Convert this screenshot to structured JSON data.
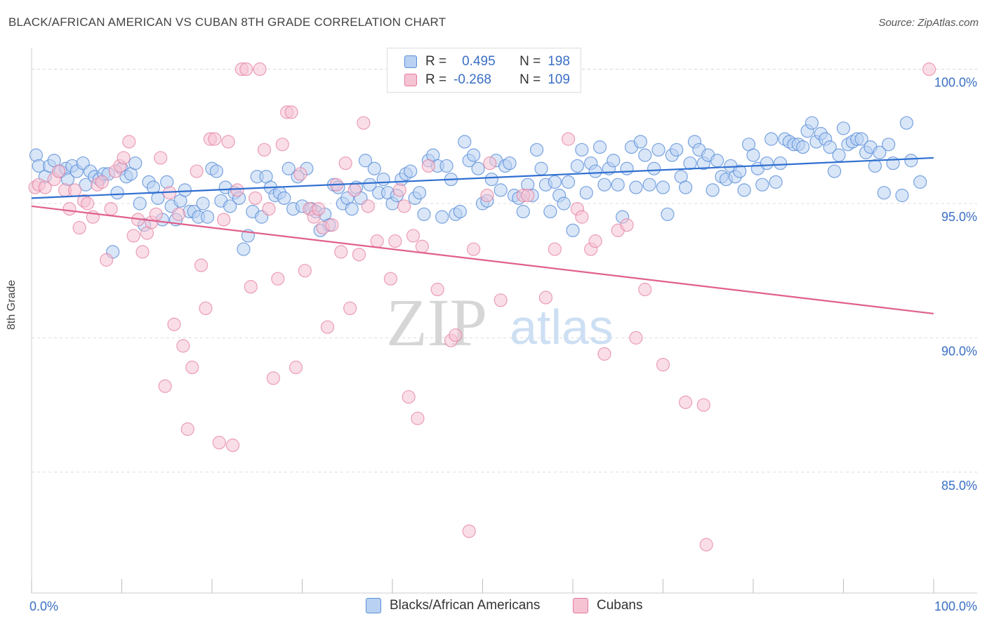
{
  "header": {
    "title": "BLACK/AFRICAN AMERICAN VS CUBAN 8TH GRADE CORRELATION CHART",
    "source": "Source: ZipAtlas.com"
  },
  "watermark": {
    "zip": "ZIP",
    "atlas": "atlas"
  },
  "legend": {
    "r_label": "R =",
    "n_label": "N =",
    "series": [
      {
        "r": "0.495",
        "n": "198"
      },
      {
        "r": "-0.268",
        "n": "109"
      }
    ]
  },
  "colors": {
    "blue": "#5a8fd8",
    "blue_fill": "#b9d1f2",
    "pink": "#e27a9d",
    "pink_fill": "#f6c3d3",
    "blue_line": "#2f6fd0",
    "pink_line": "#e0608c",
    "tick_text": "#3a6fc4"
  },
  "chart_data": {
    "type": "scatter",
    "title": "BLACK/AFRICAN AMERICAN VS CUBAN 8TH GRADE CORRELATION CHART",
    "xlabel": "",
    "ylabel": "8th Grade",
    "xlim": [
      0,
      100
    ],
    "ylim": [
      80.5,
      100.8
    ],
    "x_tick_labels": [
      "0.0%",
      "100.0%"
    ],
    "y_ticks": [
      85,
      90,
      95,
      100
    ],
    "y_tick_labels": [
      "85.0%",
      "90.0%",
      "95.0%",
      "100.0%"
    ],
    "grid": "horizontal dashed",
    "legend_position": "top-center and bottom",
    "series": [
      {
        "name": "Blacks/African Americans",
        "color": "#5a8fd8",
        "trend": {
          "x": [
            0,
            100
          ],
          "y": [
            95.2,
            96.7
          ]
        },
        "points": [
          [
            0.5,
            96.8
          ],
          [
            0.8,
            96.4
          ],
          [
            1.5,
            96
          ],
          [
            2,
            96.4
          ],
          [
            2.5,
            96.6
          ],
          [
            3.2,
            96.2
          ],
          [
            3.8,
            96.3
          ],
          [
            4,
            95.9
          ],
          [
            4.5,
            96.4
          ],
          [
            5,
            96.2
          ],
          [
            5.7,
            96.5
          ],
          [
            6,
            95.7
          ],
          [
            6.5,
            96.2
          ],
          [
            7,
            96
          ],
          [
            7.5,
            95.9
          ],
          [
            8,
            96.1
          ],
          [
            8.5,
            96.1
          ],
          [
            9,
            93.2
          ],
          [
            9.5,
            95.4
          ],
          [
            10,
            96.3
          ],
          [
            10.5,
            96
          ],
          [
            11,
            96.1
          ],
          [
            11.5,
            96.5
          ],
          [
            12,
            95
          ],
          [
            12.5,
            94.2
          ],
          [
            13,
            95.8
          ],
          [
            13.5,
            95.6
          ],
          [
            14,
            95.2
          ],
          [
            14.5,
            94.4
          ],
          [
            15,
            95.8
          ],
          [
            15.5,
            94.9
          ],
          [
            16,
            94.4
          ],
          [
            16.5,
            95.1
          ],
          [
            17,
            95.5
          ],
          [
            17.5,
            94.7
          ],
          [
            18,
            94.7
          ],
          [
            18.5,
            94.5
          ],
          [
            19,
            95
          ],
          [
            19.5,
            94.5
          ],
          [
            20,
            96.3
          ],
          [
            20.5,
            96.2
          ],
          [
            21,
            95.1
          ],
          [
            21.5,
            95.6
          ],
          [
            22,
            94.9
          ],
          [
            22.5,
            95.4
          ],
          [
            23,
            95.2
          ],
          [
            23.5,
            93.3
          ],
          [
            24,
            93.8
          ],
          [
            24.5,
            94.7
          ],
          [
            25,
            96
          ],
          [
            25.5,
            94.5
          ],
          [
            26,
            96
          ],
          [
            26.5,
            95.6
          ],
          [
            27,
            95.3
          ],
          [
            27.5,
            95.4
          ],
          [
            28,
            95.2
          ],
          [
            28.5,
            96.3
          ],
          [
            29,
            94.8
          ],
          [
            29.5,
            96
          ],
          [
            30,
            94.9
          ],
          [
            30.5,
            96.3
          ],
          [
            31,
            94.8
          ],
          [
            31.5,
            94.7
          ],
          [
            32,
            94
          ],
          [
            32.5,
            94.6
          ],
          [
            33,
            94.2
          ],
          [
            33.5,
            95.7
          ],
          [
            34,
            95.6
          ],
          [
            34.5,
            95
          ],
          [
            35,
            95.2
          ],
          [
            35.5,
            94.8
          ],
          [
            36,
            95.6
          ],
          [
            36.5,
            95.2
          ],
          [
            37,
            96.6
          ],
          [
            37.5,
            95.7
          ],
          [
            38,
            96.3
          ],
          [
            38.5,
            95.4
          ],
          [
            39,
            95.9
          ],
          [
            39.5,
            95.4
          ],
          [
            40,
            95
          ],
          [
            40.5,
            95.3
          ],
          [
            41,
            95.9
          ],
          [
            41.5,
            96.1
          ],
          [
            42,
            96.2
          ],
          [
            42.5,
            95.2
          ],
          [
            43,
            95.4
          ],
          [
            43.5,
            94.6
          ],
          [
            44,
            96.6
          ],
          [
            44.5,
            96.8
          ],
          [
            45,
            96.4
          ],
          [
            45.5,
            94.5
          ],
          [
            46,
            96.4
          ],
          [
            46.5,
            95.9
          ],
          [
            47,
            94.6
          ],
          [
            47.5,
            94.7
          ],
          [
            48,
            97.3
          ],
          [
            48.5,
            96.6
          ],
          [
            49,
            96.8
          ],
          [
            49.5,
            96.3
          ],
          [
            50,
            95
          ],
          [
            50.5,
            95.1
          ],
          [
            51,
            95.9
          ],
          [
            51.5,
            96.6
          ],
          [
            52,
            95.5
          ],
          [
            52.5,
            96.4
          ],
          [
            53,
            96.5
          ],
          [
            53.5,
            95.3
          ],
          [
            54,
            95.2
          ],
          [
            54.5,
            94.7
          ],
          [
            55,
            95.7
          ],
          [
            55.5,
            95.3
          ],
          [
            56,
            97
          ],
          [
            56.5,
            96.3
          ],
          [
            57,
            95.7
          ],
          [
            57.5,
            94.7
          ],
          [
            58,
            95.8
          ],
          [
            58.5,
            95.3
          ],
          [
            59,
            95
          ],
          [
            59.5,
            95.8
          ],
          [
            60,
            94
          ],
          [
            60.5,
            96.4
          ],
          [
            61,
            97
          ],
          [
            61.5,
            95.4
          ],
          [
            62,
            96.5
          ],
          [
            62.5,
            96.2
          ],
          [
            63,
            97.1
          ],
          [
            63.5,
            95.7
          ],
          [
            64,
            96.3
          ],
          [
            64.5,
            96.6
          ],
          [
            65,
            95.7
          ],
          [
            65.5,
            94.5
          ],
          [
            66,
            96.3
          ],
          [
            66.5,
            97.1
          ],
          [
            67,
            95.6
          ],
          [
            67.5,
            97.3
          ],
          [
            68,
            96.8
          ],
          [
            68.5,
            95.7
          ],
          [
            69,
            96.3
          ],
          [
            69.5,
            97
          ],
          [
            70,
            95.6
          ],
          [
            70.5,
            94.6
          ],
          [
            71,
            96.8
          ],
          [
            71.5,
            97
          ],
          [
            72,
            96
          ],
          [
            72.5,
            95.6
          ],
          [
            73,
            96.5
          ],
          [
            73.5,
            97.3
          ],
          [
            74,
            97
          ],
          [
            74.5,
            96.5
          ],
          [
            75,
            96.8
          ],
          [
            75.5,
            95.5
          ],
          [
            76,
            96.6
          ],
          [
            76.5,
            96
          ],
          [
            77,
            95.9
          ],
          [
            77.5,
            96.4
          ],
          [
            78,
            96
          ],
          [
            78.5,
            96.2
          ],
          [
            79,
            95.5
          ],
          [
            79.5,
            97.2
          ],
          [
            80,
            96.8
          ],
          [
            80.5,
            96.3
          ],
          [
            81,
            95.7
          ],
          [
            81.5,
            96.5
          ],
          [
            82,
            97.4
          ],
          [
            82.5,
            95.8
          ],
          [
            83,
            96.5
          ],
          [
            83.5,
            97.4
          ],
          [
            84,
            97.3
          ],
          [
            84.5,
            97.2
          ],
          [
            85,
            97.2
          ],
          [
            85.5,
            97.1
          ],
          [
            86,
            97.7
          ],
          [
            86.5,
            98
          ],
          [
            87,
            97.3
          ],
          [
            87.5,
            97.6
          ],
          [
            88,
            97.4
          ],
          [
            88.5,
            97.1
          ],
          [
            89,
            96.2
          ],
          [
            89.5,
            96.8
          ],
          [
            90,
            97.8
          ],
          [
            90.5,
            97.2
          ],
          [
            91,
            97.3
          ],
          [
            91.5,
            97.4
          ],
          [
            92,
            97.4
          ],
          [
            92.5,
            96.9
          ],
          [
            93,
            97.1
          ],
          [
            93.5,
            96.4
          ],
          [
            94,
            96.9
          ],
          [
            94.5,
            95.4
          ],
          [
            95,
            97.2
          ],
          [
            95.5,
            96.5
          ],
          [
            96.5,
            95.3
          ],
          [
            97,
            98
          ],
          [
            97.5,
            96.6
          ],
          [
            98.5,
            95.8
          ]
        ]
      },
      {
        "name": "Cubans",
        "color": "#e27a9d",
        "trend": {
          "x": [
            0,
            100
          ],
          "y": [
            94.9,
            90.9
          ]
        },
        "points": [
          [
            0.4,
            95.6
          ],
          [
            0.8,
            95.7
          ],
          [
            1.5,
            95.6
          ],
          [
            2.5,
            95.9
          ],
          [
            3,
            96.2
          ],
          [
            3.7,
            95.5
          ],
          [
            4.2,
            94.8
          ],
          [
            4.8,
            95.5
          ],
          [
            5.3,
            94.1
          ],
          [
            5.8,
            95.1
          ],
          [
            6.2,
            95
          ],
          [
            6.8,
            94.5
          ],
          [
            7.3,
            95.7
          ],
          [
            7.8,
            95.8
          ],
          [
            8.3,
            92.9
          ],
          [
            8.8,
            94.8
          ],
          [
            9.3,
            96.2
          ],
          [
            9.8,
            96.4
          ],
          [
            10.2,
            96.7
          ],
          [
            10.8,
            97.3
          ],
          [
            11.3,
            93.8
          ],
          [
            11.8,
            94.4
          ],
          [
            12.3,
            93.2
          ],
          [
            12.8,
            93.9
          ],
          [
            13.3,
            94.3
          ],
          [
            13.8,
            94.6
          ],
          [
            14.3,
            96.7
          ],
          [
            14.8,
            88.2
          ],
          [
            15.3,
            95.4
          ],
          [
            15.8,
            90.5
          ],
          [
            16.3,
            94.6
          ],
          [
            16.8,
            89.7
          ],
          [
            17.3,
            86.6
          ],
          [
            17.8,
            88.9
          ],
          [
            18.3,
            96.2
          ],
          [
            18.8,
            92.7
          ],
          [
            19.3,
            91.1
          ],
          [
            19.8,
            97.4
          ],
          [
            20.3,
            97.4
          ],
          [
            20.8,
            86.1
          ],
          [
            21.3,
            94.4
          ],
          [
            21.8,
            97.3
          ],
          [
            22.3,
            86
          ],
          [
            22.8,
            95.5
          ],
          [
            23.3,
            100
          ],
          [
            23.8,
            100
          ],
          [
            24.3,
            91.9
          ],
          [
            24.8,
            95.2
          ],
          [
            25.3,
            100
          ],
          [
            25.8,
            97
          ],
          [
            26.3,
            94.8
          ],
          [
            26.8,
            88.5
          ],
          [
            27.3,
            92.2
          ],
          [
            27.8,
            97.2
          ],
          [
            28.3,
            98.4
          ],
          [
            28.8,
            98.4
          ],
          [
            29.3,
            88.9
          ],
          [
            29.8,
            96.1
          ],
          [
            30.3,
            92.5
          ],
          [
            30.8,
            94.8
          ],
          [
            31.3,
            94.5
          ],
          [
            31.8,
            94.8
          ],
          [
            32.3,
            94.1
          ],
          [
            32.8,
            90.4
          ],
          [
            33.3,
            94.2
          ],
          [
            33.8,
            95.7
          ],
          [
            34.3,
            93.2
          ],
          [
            34.8,
            96.5
          ],
          [
            35.3,
            91.1
          ],
          [
            35.8,
            95.5
          ],
          [
            36.3,
            93.1
          ],
          [
            36.8,
            98
          ],
          [
            37.3,
            94.9
          ],
          [
            38.3,
            93.6
          ],
          [
            39.8,
            92.2
          ],
          [
            40.3,
            93.6
          ],
          [
            40.8,
            95.5
          ],
          [
            41.3,
            94.9
          ],
          [
            41.8,
            87.8
          ],
          [
            42.3,
            93.8
          ],
          [
            42.8,
            87
          ],
          [
            43.3,
            93.4
          ],
          [
            44,
            96.4
          ],
          [
            45,
            91.8
          ],
          [
            46.5,
            89.9
          ],
          [
            47,
            90.1
          ],
          [
            48.5,
            82.8
          ],
          [
            49,
            93.3
          ],
          [
            50.5,
            95.3
          ],
          [
            50.8,
            96.5
          ],
          [
            52,
            91.4
          ],
          [
            54.5,
            95.3
          ],
          [
            55,
            95.3
          ],
          [
            57,
            91.5
          ],
          [
            58,
            93.3
          ],
          [
            59.5,
            97.4
          ],
          [
            60.5,
            94.8
          ],
          [
            61,
            94.5
          ],
          [
            62,
            93.3
          ],
          [
            62.5,
            93.6
          ],
          [
            63.5,
            89.4
          ],
          [
            65,
            94
          ],
          [
            66,
            94.2
          ],
          [
            67,
            90
          ],
          [
            68,
            91.8
          ],
          [
            70,
            89
          ],
          [
            72.5,
            87.6
          ],
          [
            74.5,
            87.5
          ],
          [
            74.8,
            82.3
          ],
          [
            99.5,
            100
          ]
        ]
      }
    ]
  },
  "legend_bottom": [
    {
      "label": "Blacks/African Americans"
    },
    {
      "label": "Cubans"
    }
  ]
}
